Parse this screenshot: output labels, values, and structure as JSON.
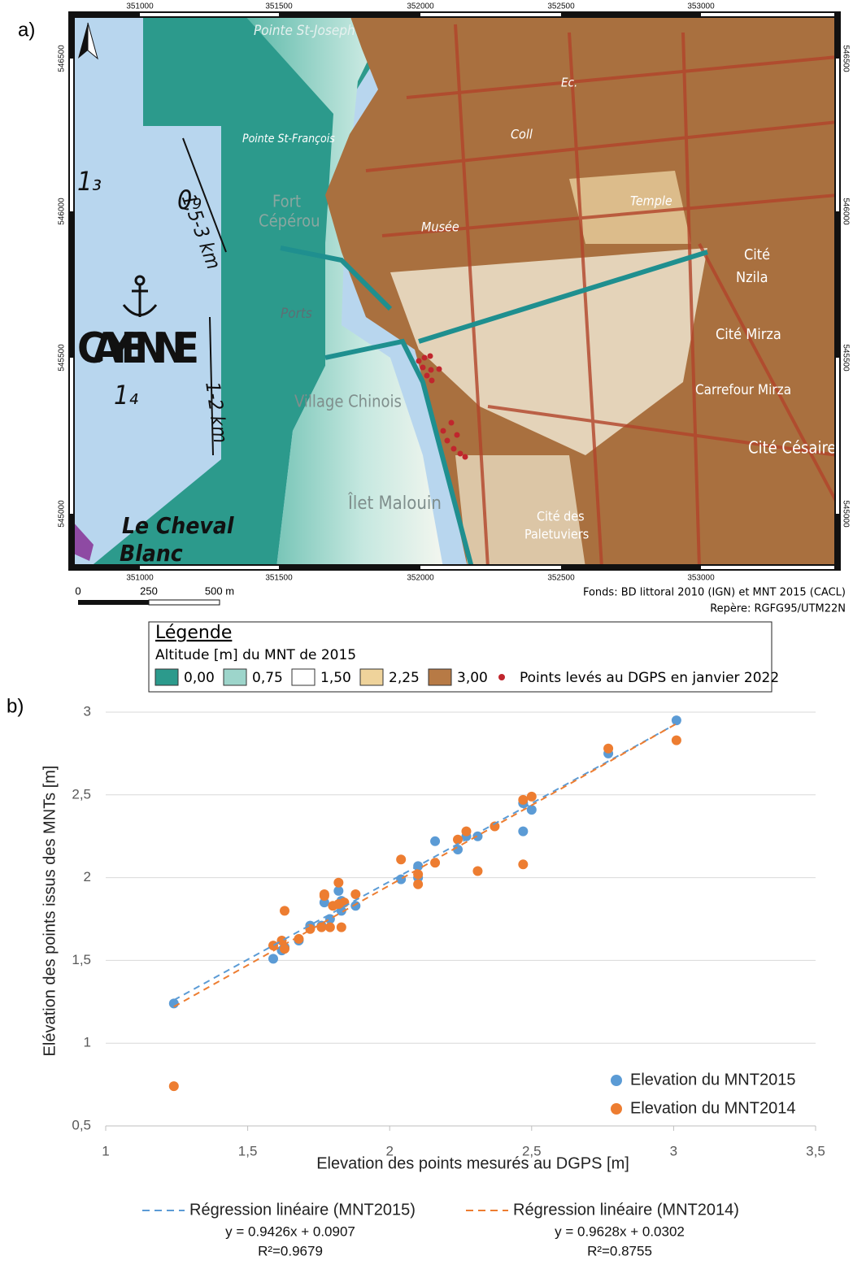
{
  "panel_labels": [
    "a)",
    "b)"
  ],
  "map": {
    "x_ticks": [
      "351000",
      "351500",
      "352000",
      "352500",
      "353000"
    ],
    "y_ticks": [
      "546500",
      "546000",
      "545500",
      "545000"
    ],
    "scale_bar": [
      "0",
      "250",
      "500 m"
    ],
    "credits": [
      "Fonds: BD littoral 2010 (IGN) et MNT 2015 (CACL)",
      "Repère: RGFG95/UTM22N"
    ],
    "labels": [
      "Pointe St-Joseph",
      "Pointe St-François",
      "Fort",
      "Cépérou",
      "Ports",
      "Village Chinois",
      "Îlet Malouin",
      "CAYENNE",
      "Le Cheval",
      "Blanc",
      "1,5-3 km",
      "1-2 km",
      "1₃",
      "0₉",
      "1₄",
      "Cité",
      "Nzila",
      "Cité Mirza",
      "Carrefour Mirza",
      "Cité Césaire",
      "Cité des",
      "Paletuviers",
      "Musée",
      "Coll",
      "Temple",
      "Ec."
    ],
    "legend": {
      "title": "Légende",
      "subtitle": "Altitude [m] du MNT de 2015",
      "items": [
        {
          "label": "0,00",
          "color": "#2c9a8c"
        },
        {
          "label": "0,75",
          "color": "#9dd5cb"
        },
        {
          "label": "1,50",
          "color": "#ffffff"
        },
        {
          "label": "2,25",
          "color": "#efd39b"
        },
        {
          "label": "3,00",
          "color": "#b77a45"
        }
      ],
      "points": {
        "label": "Points levés au DGPS en janvier 2022",
        "color": "#c0262d"
      }
    }
  },
  "chart_data": {
    "type": "scatter",
    "x_label": "Elevation des points mesurés au DGPS [m]",
    "y_label": "Elévation des points issus des MNTs [m]",
    "xlim": [
      1,
      3.5
    ],
    "ylim": [
      0.5,
      3
    ],
    "xticks": [
      1,
      {
        "value": 1.5,
        "label": "1,5"
      },
      2,
      {
        "value": 2.5,
        "label": "2,5"
      },
      3,
      {
        "value": 3.5,
        "label": "3,5"
      }
    ],
    "yticks": [
      {
        "value": 0.5,
        "label": "0,5"
      },
      1,
      {
        "value": 1.5,
        "label": "1,5"
      },
      2,
      {
        "value": 2.5,
        "label": "2,5"
      },
      3
    ],
    "grid": true,
    "legend": "lower right",
    "series": [
      {
        "name": "Elevation du MNT2015",
        "type": "scatter",
        "color": "#5b9bd5",
        "x": [
          1.24,
          1.59,
          1.62,
          1.63,
          1.68,
          1.72,
          1.76,
          1.77,
          1.79,
          1.82,
          1.83,
          1.83,
          1.88,
          2.04,
          2.1,
          2.1,
          2.16,
          2.24,
          2.27,
          2.31,
          2.47,
          2.47,
          2.5,
          2.77,
          3.01
        ],
        "values": [
          1.24,
          1.51,
          1.56,
          1.58,
          1.62,
          1.71,
          1.71,
          1.85,
          1.75,
          1.92,
          1.8,
          1.86,
          1.83,
          1.99,
          2.07,
          2.0,
          2.22,
          2.17,
          2.25,
          2.25,
          2.28,
          2.45,
          2.41,
          2.75,
          2.95
        ]
      },
      {
        "name": "Elevation du MNT2014",
        "type": "scatter",
        "color": "#ed7d31",
        "x": [
          1.24,
          1.59,
          1.62,
          1.63,
          1.63,
          1.68,
          1.72,
          1.76,
          1.77,
          1.77,
          1.79,
          1.8,
          1.82,
          1.82,
          1.83,
          1.84,
          1.88,
          2.04,
          2.1,
          2.1,
          2.16,
          2.24,
          2.27,
          2.31,
          2.37,
          2.47,
          2.47,
          2.5,
          2.77,
          3.01
        ],
        "values": [
          0.74,
          1.59,
          1.62,
          1.8,
          1.57,
          1.63,
          1.69,
          1.7,
          1.9,
          1.89,
          1.7,
          1.83,
          1.97,
          1.84,
          1.7,
          1.85,
          1.9,
          2.11,
          2.02,
          1.96,
          2.09,
          2.23,
          2.28,
          2.04,
          2.31,
          2.47,
          2.08,
          2.49,
          2.78,
          2.83
        ]
      },
      {
        "name": "Régression linéaire (MNT2015)",
        "type": "line",
        "color": "#5b9bd5",
        "equation": "y = 0.9426x + 0.0907",
        "r2": "R²=0.9679",
        "x": [
          1.24,
          3.01
        ],
        "values": [
          1.26,
          2.93
        ]
      },
      {
        "name": "Régression linéaire (MNT2014)",
        "type": "line",
        "color": "#ed7d31",
        "equation": "y = 0.9628x + 0.0302",
        "r2": "R²=0.8755",
        "x": [
          1.24,
          3.01
        ],
        "values": [
          1.22,
          2.93
        ]
      }
    ]
  }
}
